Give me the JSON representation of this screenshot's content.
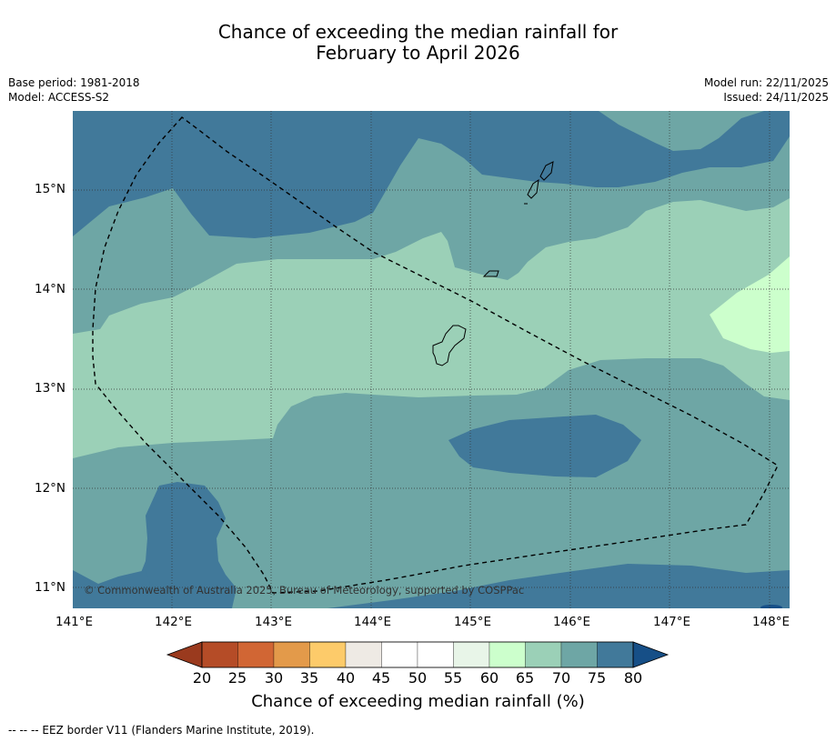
{
  "header": {
    "title_line1": "Chance of exceeding the median rainfall for",
    "title_line2": "February to April 2026",
    "base_period": "Base period: 1981-2018",
    "model": "Model: ACCESS-S2",
    "model_run": "Model run: 22/11/2025",
    "issued": "Issued: 24/11/2025"
  },
  "map": {
    "copyright": "© Commonwealth of Australia 2025, Bureau of Meteorology, supported by COSPPac",
    "lon_labels": [
      "141°E",
      "142°E",
      "143°E",
      "144°E",
      "145°E",
      "146°E",
      "147°E",
      "148°E"
    ],
    "lat_labels": [
      "15°N",
      "14°N",
      "13°N",
      "12°N",
      "11°N"
    ],
    "lon_range": [
      141,
      148.2
    ],
    "lat_range": [
      10.8,
      15.8
    ],
    "colors": {
      "c_65_70": "#9bd0b7",
      "c_70_75": "#6ea6a5",
      "c_75_80": "#41799a",
      "c_60_65": "#ccffcc"
    }
  },
  "colorbar": {
    "labels": [
      "20",
      "25",
      "30",
      "35",
      "40",
      "45",
      "50",
      "55",
      "60",
      "65",
      "70",
      "75",
      "80"
    ],
    "colors": [
      "#9a3a1e",
      "#b54c27",
      "#d16634",
      "#e39a4a",
      "#fdcb6a",
      "#eeeae4",
      "#ffffff",
      "#ffffff",
      "#e8f5e8",
      "#ccffcc",
      "#9bd0b7",
      "#6ea6a5",
      "#41799a",
      "#164f87"
    ],
    "title": "Chance of exceeding median rainfall (%)"
  },
  "footer": {
    "legend_line": "--  --  -- EEZ border V11 (Flanders Marine Institute, 2019)."
  }
}
